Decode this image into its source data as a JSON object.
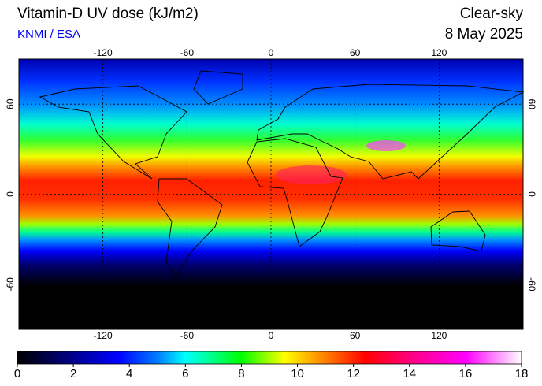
{
  "map": {
    "title": "Vitamin-D UV dose (kJ/m2)",
    "source": "KNMI / ESA",
    "condition": "Clear-sky",
    "date": "8 May 2025",
    "xlim": [
      -180,
      180
    ],
    "ylim": [
      -90,
      90
    ],
    "xticks": [
      -120,
      -60,
      0,
      60,
      120
    ],
    "yticks": [
      -60,
      0,
      60
    ],
    "colorbar": {
      "lim": [
        0,
        18
      ],
      "ticks": [
        0,
        2,
        4,
        6,
        8,
        10,
        12,
        14,
        16,
        18
      ]
    }
  }
}
